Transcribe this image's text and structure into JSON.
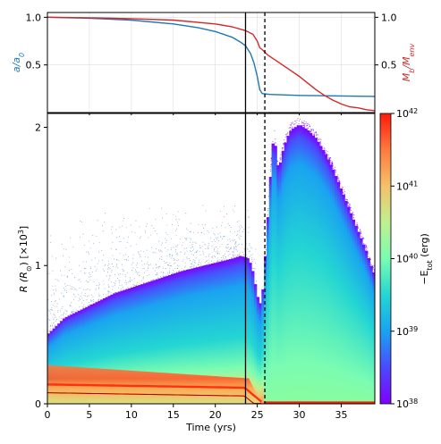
{
  "colors": {
    "blue": "#1f77b4",
    "red": "#d62728",
    "black": "#000000",
    "grid": "#dddddd",
    "colormap": [
      "#7f00ff",
      "#4b4afd",
      "#1aa3f0",
      "#24d6d2",
      "#7afcb2",
      "#c0f08f",
      "#f4c16b",
      "#ff7a3e",
      "#ff1a0d"
    ]
  },
  "chart_data": [
    {
      "type": "line",
      "panel": "top",
      "x_ticks": [
        "0",
        "5",
        "10",
        "15",
        "20",
        "25",
        "30",
        "35"
      ],
      "xlim": [
        0,
        39
      ],
      "ylim_left": [
        0,
        1.05
      ],
      "ylim_right": [
        0,
        1.05
      ],
      "yticks_left": [
        "0.5",
        "1.0"
      ],
      "yticks_right": [
        "0.5",
        "1.0"
      ],
      "ylabel_left": "a/a₀",
      "ylabel_right": "M_b/M_env",
      "grid": true,
      "series": [
        {
          "axis": "left",
          "color": "blue",
          "points": [
            [
              0,
              1.0
            ],
            [
              5,
              0.99
            ],
            [
              10,
              0.97
            ],
            [
              15,
              0.93
            ],
            [
              18,
              0.89
            ],
            [
              20,
              0.85
            ],
            [
              22,
              0.79
            ],
            [
              23,
              0.74
            ],
            [
              23.6,
              0.7
            ],
            [
              24.2,
              0.62
            ],
            [
              24.6,
              0.52
            ],
            [
              25.0,
              0.38
            ],
            [
              25.3,
              0.24
            ],
            [
              25.6,
              0.2
            ],
            [
              26.5,
              0.19
            ],
            [
              30,
              0.18
            ],
            [
              39,
              0.17
            ]
          ]
        },
        {
          "axis": "right",
          "color": "red",
          "points": [
            [
              0,
              1.0
            ],
            [
              5,
              0.995
            ],
            [
              10,
              0.985
            ],
            [
              15,
              0.97
            ],
            [
              20,
              0.93
            ],
            [
              22,
              0.9
            ],
            [
              23.6,
              0.86
            ],
            [
              24.5,
              0.82
            ],
            [
              25,
              0.75
            ],
            [
              25.3,
              0.68
            ],
            [
              25.6,
              0.66
            ],
            [
              26.3,
              0.6
            ],
            [
              27,
              0.56
            ],
            [
              28,
              0.5
            ],
            [
              29,
              0.44
            ],
            [
              30,
              0.38
            ],
            [
              31,
              0.31
            ],
            [
              32,
              0.24
            ],
            [
              33,
              0.18
            ],
            [
              34,
              0.13
            ],
            [
              35,
              0.09
            ],
            [
              36,
              0.06
            ],
            [
              37,
              0.05
            ],
            [
              38,
              0.03
            ],
            [
              39,
              0.02
            ]
          ]
        }
      ],
      "vlines": [
        {
          "x": 23.6,
          "style": "solid"
        },
        {
          "x": 25.9,
          "style": "dashed"
        }
      ]
    },
    {
      "type": "scatter",
      "panel": "bottom",
      "x_ticks": [
        "0",
        "5",
        "10",
        "15",
        "20",
        "25",
        "30",
        "35"
      ],
      "xlabel": "Time (yrs)",
      "xlim": [
        0,
        39
      ],
      "ylim": [
        0,
        2.1
      ],
      "y_ticks": [
        "0",
        "1",
        "2"
      ],
      "ylabel": "R (R⊙) [×10³]",
      "upper_envelope": [
        [
          0,
          0.5
        ],
        [
          2,
          0.62
        ],
        [
          4,
          0.68
        ],
        [
          6,
          0.74
        ],
        [
          8,
          0.8
        ],
        [
          10,
          0.84
        ],
        [
          12,
          0.88
        ],
        [
          14,
          0.92
        ],
        [
          16,
          0.96
        ],
        [
          18,
          0.99
        ],
        [
          20,
          1.02
        ],
        [
          22,
          1.05
        ],
        [
          23,
          1.07
        ],
        [
          24,
          1.05
        ],
        [
          24.5,
          0.95
        ],
        [
          25,
          0.78
        ],
        [
          25.4,
          0.72
        ],
        [
          25.7,
          0.85
        ],
        [
          26.1,
          1.2
        ],
        [
          26.5,
          1.6
        ],
        [
          26.8,
          1.85
        ],
        [
          27.0,
          1.98
        ],
        [
          27.3,
          1.75
        ],
        [
          27.6,
          1.7
        ],
        [
          28.0,
          1.82
        ],
        [
          28.5,
          1.92
        ],
        [
          29,
          1.98
        ],
        [
          30,
          2.02
        ],
        [
          31,
          1.98
        ],
        [
          32,
          1.92
        ],
        [
          33,
          1.82
        ],
        [
          34,
          1.7
        ],
        [
          35,
          1.55
        ],
        [
          36,
          1.4
        ],
        [
          37,
          1.25
        ],
        [
          38,
          1.1
        ],
        [
          38.8,
          0.95
        ]
      ],
      "colorbar": {
        "label": "−E_tot (erg)",
        "scale": "log",
        "range": [
          1e+38,
          1e+42
        ],
        "tick_bases": [
          "10",
          "10",
          "10",
          "10",
          "10"
        ],
        "tick_exps": [
          "38",
          "39",
          "40",
          "41",
          "42"
        ]
      },
      "vlines": [
        {
          "x": 23.6,
          "style": "solid"
        },
        {
          "x": 25.9,
          "style": "dashed"
        }
      ]
    }
  ],
  "text": {
    "top_ylabel_left_main": "a/a",
    "top_ylabel_left_sub": "0",
    "top_ylabel_right_main": "M",
    "top_ylabel_right_sub1": "b",
    "top_ylabel_right_mid": "/M",
    "top_ylabel_right_sub2": "env",
    "bottom_ylabel_a": "R (R",
    "bottom_ylabel_b": "⊙",
    "bottom_ylabel_c": ") [×10",
    "bottom_ylabel_exp": "3",
    "bottom_ylabel_d": "]",
    "xlabel": "Time (yrs)",
    "cbar_minus": "−E",
    "cbar_sub": "tot",
    "cbar_unit": " (erg)"
  }
}
